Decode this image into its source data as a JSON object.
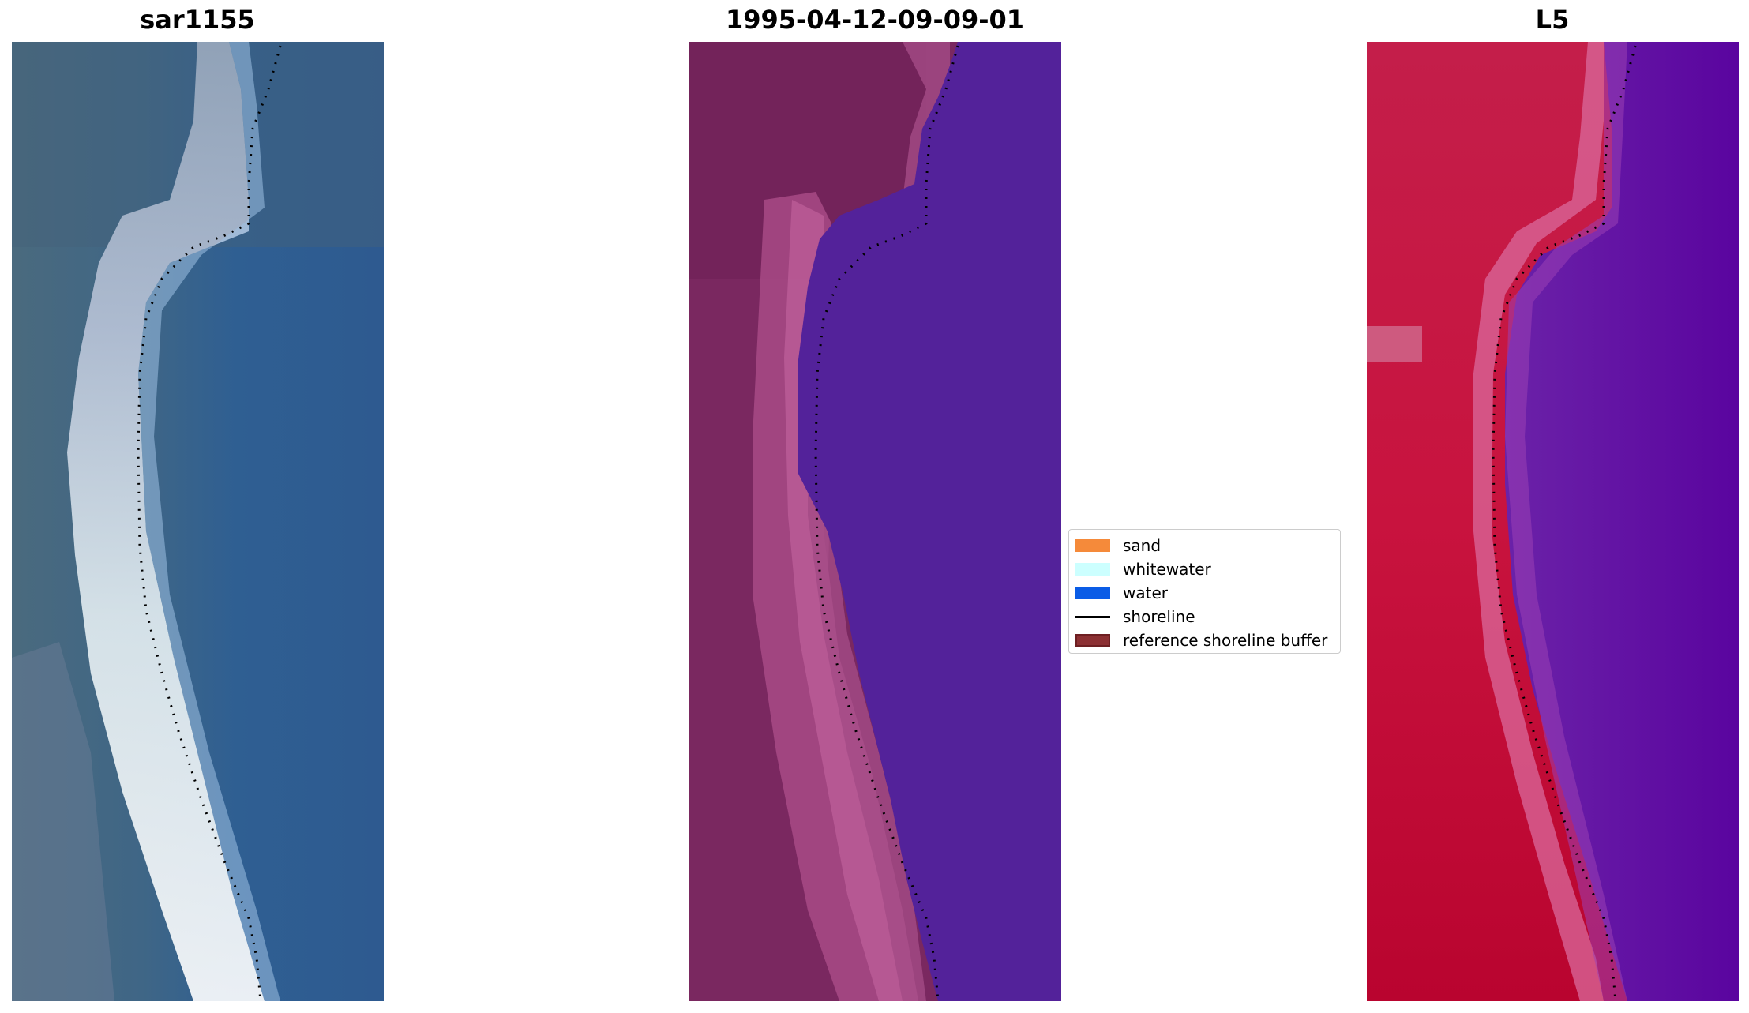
{
  "panels": [
    {
      "title": "sar1155"
    },
    {
      "title": "1995-04-12-09-09-01"
    },
    {
      "title": "L5"
    }
  ],
  "legend": {
    "items": [
      {
        "label": "sand",
        "color": "#f58a3a"
      },
      {
        "label": "whitewater",
        "color": "#ccffff"
      },
      {
        "label": "water",
        "color": "#0a5ce6"
      },
      {
        "label": "shoreline",
        "color": "#000000"
      },
      {
        "label": "reference shoreline buffer",
        "color": "#8c3033"
      }
    ]
  }
}
